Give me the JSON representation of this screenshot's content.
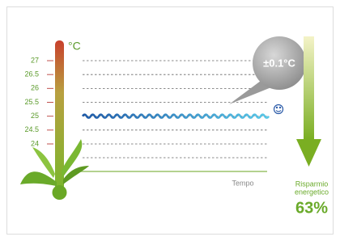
{
  "chart_data": {
    "type": "line",
    "unit": "°C",
    "ylim": [
      23,
      28
    ],
    "yticks": [
      27,
      26.5,
      26,
      25.5,
      25,
      24.5,
      24
    ],
    "x_label": "Tempo",
    "annotation": "±0.1°C",
    "savings_label": [
      "Risparmio",
      "energetico"
    ],
    "savings_value": "63%"
  }
}
